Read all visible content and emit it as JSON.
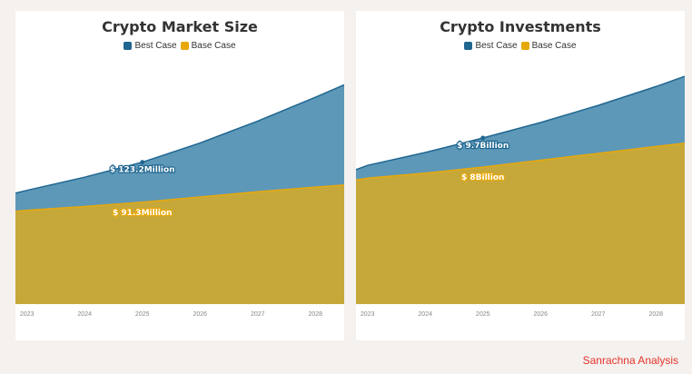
{
  "colors": {
    "best": "#1f6690",
    "best_fill": "#5d98b8",
    "base": "#e8a80c",
    "base_fill": "#c6a83a",
    "page_bg": "#f4f1ee"
  },
  "legend": {
    "best_label": "Best Case",
    "base_label": "Base Case"
  },
  "watermark": "Sanrachna Analysis",
  "chart_data": [
    {
      "type": "area",
      "title": "Crypto Market Size",
      "x": [
        "2022.8",
        "2023",
        "2024",
        "2025",
        "2026",
        "2027",
        "2028",
        "2028.5"
      ],
      "tick_labels": [
        "2023",
        "2024",
        "2025",
        "2026",
        "2027",
        "2028"
      ],
      "series": [
        {
          "name": "Best Case",
          "values": [
            98.5,
            100.8,
            111.3,
            123.2,
            138.5,
            156.0,
            175.0,
            185.0
          ]
        },
        {
          "name": "Base Case",
          "values": [
            84.0,
            84.9,
            87.9,
            91.3,
            95.5,
            99.7,
            103.4,
            105.0
          ]
        }
      ],
      "ylim": [
        10,
        215
      ],
      "annotations": [
        {
          "x": "2025",
          "series": "Best Case",
          "text": "$ 123.2Million"
        },
        {
          "x": "2025",
          "series": "Base Case",
          "text": "$ 91.3Million"
        }
      ]
    },
    {
      "type": "area",
      "title": "Crypto Investments",
      "x": [
        "2022.8",
        "2023",
        "2024",
        "2025",
        "2026",
        "2027",
        "2028",
        "2028.5"
      ],
      "tick_labels": [
        "2023",
        "2024",
        "2025",
        "2026",
        "2027",
        "2028"
      ],
      "series": [
        {
          "name": "Best Case",
          "values": [
            7.85,
            8.1,
            8.85,
            9.7,
            10.6,
            11.6,
            12.7,
            13.3
          ]
        },
        {
          "name": "Base Case",
          "values": [
            7.25,
            7.35,
            7.65,
            8.0,
            8.4,
            8.8,
            9.2,
            9.4
          ]
        }
      ],
      "ylim": [
        0,
        15
      ],
      "annotations": [
        {
          "x": "2025",
          "series": "Best Case",
          "text": "$ 9.7Billion"
        },
        {
          "x": "2025",
          "series": "Base Case",
          "text": "$ 8Billion"
        }
      ]
    }
  ]
}
